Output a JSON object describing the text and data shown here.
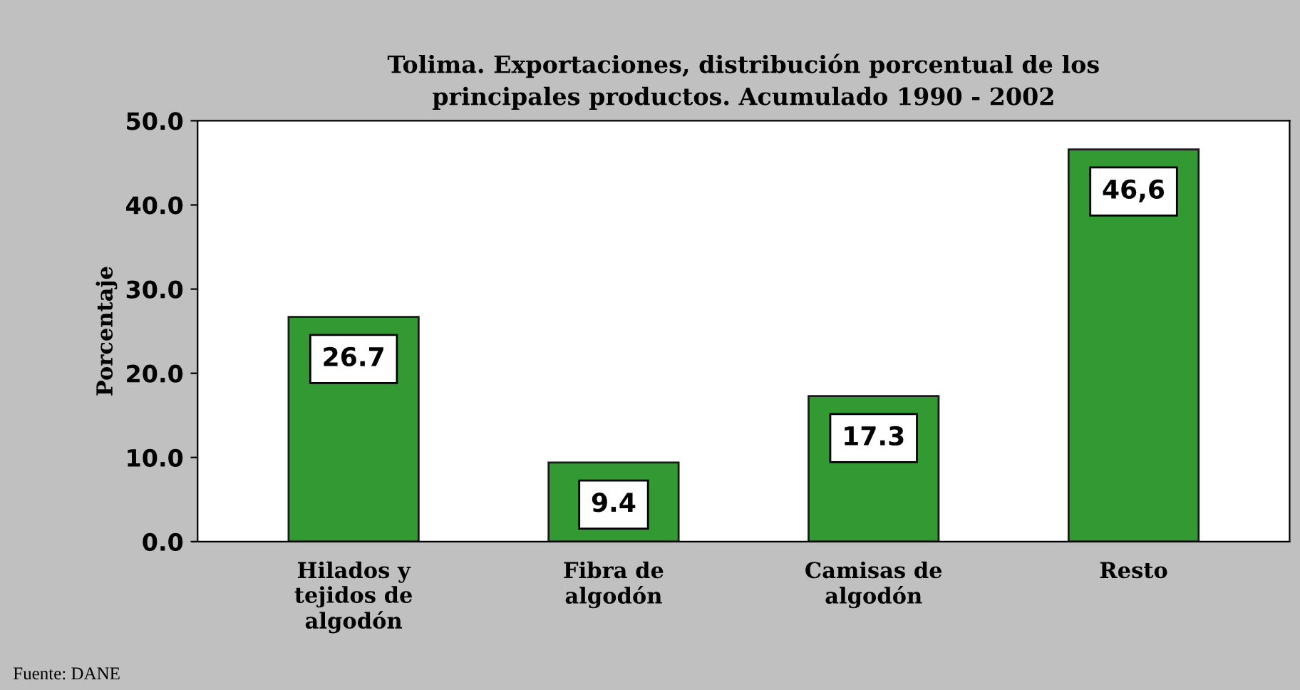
{
  "chart_data": {
    "type": "bar",
    "title": "Tolima. Exportaciones, distribución porcentual de los\nprincipales productos. Acumulado 1990 - 2002",
    "ylabel": "Porcentaje",
    "categories": [
      "Hilados y\ntejidos de\nalgodón",
      "Fibra de\nalgodón",
      "Camisas de\nalgodón",
      "Resto"
    ],
    "values": [
      26.7,
      9.4,
      17.3,
      46.6
    ],
    "value_labels": [
      "26.7",
      "9.4",
      "17.3",
      "46,6"
    ],
    "color": "#339933",
    "ylim": [
      0,
      50
    ],
    "yticks": [
      {
        "value": 0,
        "label": "0.0"
      },
      {
        "value": 10,
        "label": "10.0"
      },
      {
        "value": 20,
        "label": "20.0"
      },
      {
        "value": 30,
        "label": "30.0"
      },
      {
        "value": 40,
        "label": "40.0"
      },
      {
        "value": 50,
        "label": "50.0"
      }
    ],
    "grid": false,
    "annotations": [
      "Fuente: DANE"
    ]
  }
}
